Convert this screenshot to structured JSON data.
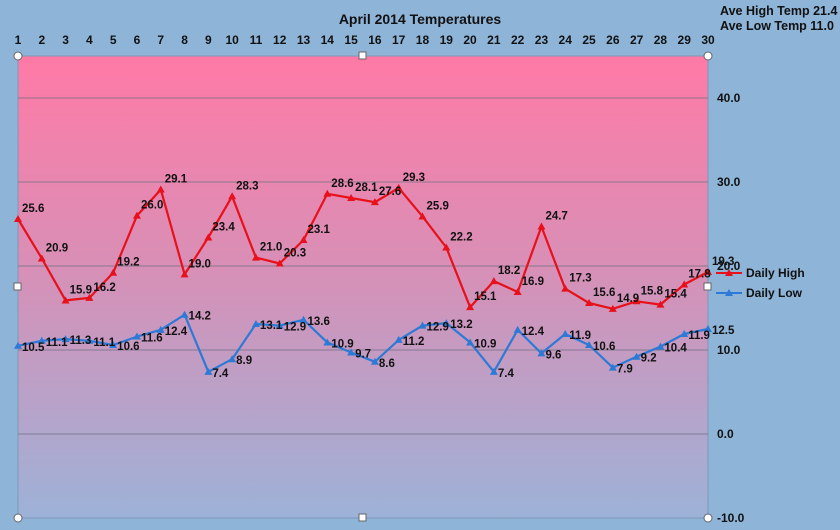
{
  "chart_data": {
    "type": "line",
    "title": "April 2014 Temperatures",
    "annotations": [
      "Ave High Temp 21.4",
      "Ave Low Temp 11.0"
    ],
    "x": [
      1,
      2,
      3,
      4,
      5,
      6,
      7,
      8,
      9,
      10,
      11,
      12,
      13,
      14,
      15,
      16,
      17,
      18,
      19,
      20,
      21,
      22,
      23,
      24,
      25,
      26,
      27,
      28,
      29,
      30
    ],
    "x_tick_labels": [
      "1",
      "2",
      "3",
      "4",
      "5",
      "6",
      "7",
      "8",
      "9",
      "10",
      "11",
      "12",
      "13",
      "14",
      "15",
      "16",
      "17",
      "18",
      "19",
      "20",
      "21",
      "22",
      "23",
      "24",
      "25",
      "26",
      "27",
      "28",
      "29",
      "30"
    ],
    "y_tick_labels": [
      "40.0",
      "30.0",
      "20.0",
      "10.0",
      "0.0",
      "-10.0"
    ],
    "y_ticks": [
      40,
      30,
      20,
      10,
      0,
      -10
    ],
    "ylim": [
      -10,
      45
    ],
    "grid": true,
    "legend_position": "right",
    "series": [
      {
        "name": "Daily High",
        "color": "#e8101a",
        "values": [
          25.6,
          20.9,
          15.9,
          16.2,
          19.2,
          26.0,
          29.1,
          19.0,
          23.4,
          28.3,
          21.0,
          20.3,
          23.1,
          28.6,
          28.1,
          27.6,
          29.3,
          25.9,
          22.2,
          15.1,
          18.2,
          16.9,
          24.7,
          17.3,
          15.6,
          14.9,
          15.8,
          15.4,
          17.8,
          19.3
        ],
        "labels": [
          "25.6",
          "20.9",
          "15.9",
          "16.2",
          "19.2",
          "26.0",
          "29.1",
          "19.0",
          "23.4",
          "28.3",
          "21.0",
          "20.3",
          "23.1",
          "28.6",
          "28.1",
          "27.6",
          "29.3",
          "25.9",
          "22.2",
          "15.1",
          "18.2",
          "16.9",
          "24.7",
          "17.3",
          "15.6",
          "14.9",
          "15.8",
          "15.4",
          "17.8",
          "19.3"
        ]
      },
      {
        "name": "Daily Low",
        "color": "#2d7ad6",
        "values": [
          10.5,
          11.1,
          11.3,
          11.1,
          10.6,
          11.6,
          12.4,
          14.2,
          7.4,
          8.9,
          13.1,
          12.9,
          13.6,
          10.9,
          9.7,
          8.6,
          11.2,
          12.9,
          13.2,
          10.9,
          7.4,
          12.4,
          9.6,
          11.9,
          10.6,
          7.9,
          9.2,
          10.4,
          11.9,
          12.5
        ],
        "labels": [
          "10.5",
          "11.1",
          "11.3",
          "11.1",
          "10.6",
          "11.6",
          "12.4",
          "14.2",
          "7.4",
          "8.9",
          "13.1",
          "12.9",
          "13.6",
          "10.9",
          "9.7",
          "8.6",
          "11.2",
          "12.9",
          "13.2",
          "10.9",
          "7.4",
          "12.4",
          "9.6",
          "11.9",
          "10.6",
          "7.9",
          "9.2",
          "10.4",
          "11.9",
          "12.5"
        ]
      }
    ]
  }
}
